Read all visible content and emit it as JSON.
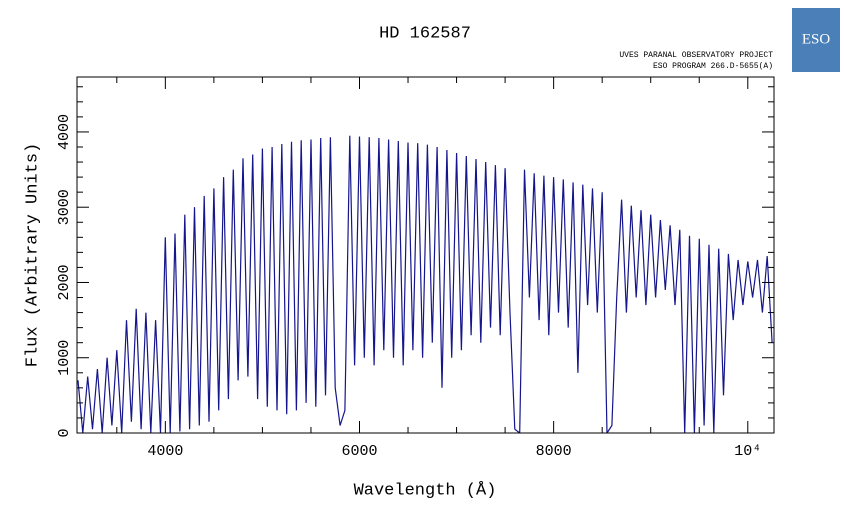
{
  "chart_data": {
    "type": "line",
    "title": "HD 162587",
    "header_lines": [
      "UVES PARANAL OBSERVATORY PROJECT",
      "ESO PROGRAM 266.D-5655(A)"
    ],
    "logo": "ESO",
    "xlabel": "Wavelength (Å)",
    "ylabel": "Flux (Arbitrary Units)",
    "color": "#15158c",
    "xlim": [
      3090,
      10270
    ],
    "ylim": [
      0,
      4730
    ],
    "xticks": [
      4000,
      6000,
      8000,
      {
        "value": 10000,
        "label": "10⁴"
      }
    ],
    "xminorticks": [
      3500,
      4500,
      5000,
      5500,
      6500,
      7000,
      7500,
      8500,
      9000,
      9500
    ],
    "yticks": [
      0,
      1000,
      2000,
      3000,
      4000
    ],
    "yminorticks": [
      200,
      400,
      600,
      800,
      1200,
      1400,
      1600,
      1800,
      2200,
      2400,
      2600,
      2800,
      3200,
      3400,
      3600,
      3800,
      4200,
      4400,
      4600
    ],
    "x": [
      3100,
      3150,
      3200,
      3250,
      3300,
      3350,
      3400,
      3450,
      3500,
      3550,
      3600,
      3650,
      3700,
      3750,
      3800,
      3850,
      3900,
      3950,
      4000,
      4050,
      4100,
      4150,
      4200,
      4250,
      4300,
      4350,
      4400,
      4450,
      4500,
      4550,
      4600,
      4650,
      4700,
      4750,
      4800,
      4850,
      4900,
      4950,
      5000,
      5050,
      5100,
      5150,
      5200,
      5250,
      5300,
      5350,
      5400,
      5450,
      5500,
      5550,
      5600,
      5650,
      5700,
      5750,
      5800,
      5850,
      5900,
      5950,
      6000,
      6050,
      6100,
      6150,
      6200,
      6250,
      6300,
      6350,
      6400,
      6450,
      6500,
      6550,
      6600,
      6650,
      6700,
      6750,
      6800,
      6850,
      6900,
      6950,
      7000,
      7050,
      7100,
      7150,
      7200,
      7250,
      7300,
      7350,
      7400,
      7450,
      7500,
      7550,
      7600,
      7650,
      7700,
      7750,
      7800,
      7850,
      7900,
      7950,
      8000,
      8050,
      8100,
      8150,
      8200,
      8250,
      8300,
      8350,
      8400,
      8450,
      8500,
      8550,
      8600,
      8650,
      8700,
      8750,
      8800,
      8850,
      8900,
      8950,
      9000,
      9050,
      9100,
      9150,
      9200,
      9250,
      9300,
      9350,
      9400,
      9450,
      9500,
      9550,
      9600,
      9650,
      9700,
      9750,
      9800,
      9850,
      9900,
      9950,
      10000,
      10050,
      10100,
      10150,
      10200,
      10250
    ],
    "values": [
      700,
      0,
      750,
      50,
      850,
      0,
      1000,
      100,
      1100,
      0,
      1500,
      150,
      1650,
      50,
      1600,
      0,
      1500,
      0,
      2600,
      0,
      2650,
      20,
      2900,
      50,
      3000,
      100,
      3150,
      150,
      3250,
      300,
      3400,
      450,
      3500,
      700,
      3650,
      750,
      3700,
      450,
      3780,
      350,
      3800,
      300,
      3840,
      250,
      3870,
      300,
      3890,
      400,
      3900,
      350,
      3920,
      500,
      3930,
      600,
      100,
      300,
      3950,
      900,
      3940,
      1000,
      3930,
      900,
      3920,
      1100,
      3900,
      1000,
      3880,
      900,
      3860,
      1100,
      3850,
      1000,
      3830,
      1200,
      3800,
      600,
      3760,
      1000,
      3720,
      1100,
      3680,
      1300,
      3640,
      1200,
      3600,
      1400,
      3560,
      1300,
      3520,
      1600,
      50,
      0,
      3500,
      1800,
      3450,
      1500,
      3420,
      1300,
      3400,
      1600,
      3370,
      1400,
      3330,
      800,
      3300,
      1700,
      3250,
      1600,
      3200,
      0,
      100,
      1800,
      3100,
      1600,
      3020,
      1800,
      2960,
      1700,
      2900,
      1800,
      2830,
      1900,
      2760,
      1700,
      2700,
      0,
      2620,
      0,
      2580,
      100,
      2500,
      0,
      2450,
      500,
      2380,
      1500,
      2300,
      1700,
      2280,
      1800,
      2300,
      1600,
      2350,
      1200
    ]
  }
}
